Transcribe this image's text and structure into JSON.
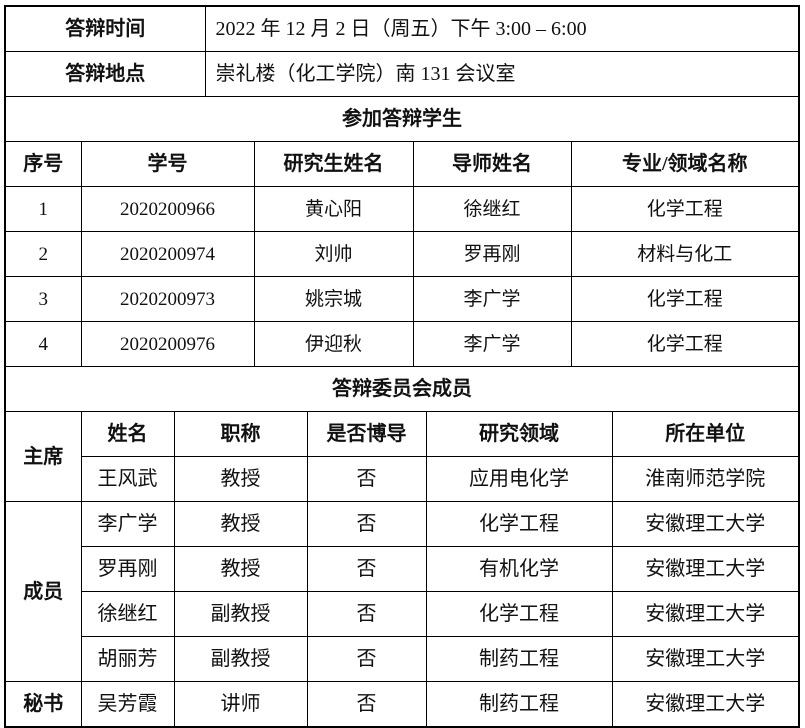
{
  "info": {
    "time_label": "答辩时间",
    "time_value": "2022 年 12 月 2 日（周五）下午 3:00 – 6:00",
    "place_label": "答辩地点",
    "place_value": "崇礼楼（化工学院）南 131 会议室"
  },
  "students": {
    "title": "参加答辩学生",
    "headers": [
      "序号",
      "学号",
      "研究生姓名",
      "导师姓名",
      "专业/领域名称"
    ],
    "rows": [
      [
        "1",
        "2020200966",
        "黄心阳",
        "徐继红",
        "化学工程"
      ],
      [
        "2",
        "2020200974",
        "刘帅",
        "罗再刚",
        "材料与化工"
      ],
      [
        "3",
        "2020200973",
        "姚宗城",
        "李广学",
        "化学工程"
      ],
      [
        "4",
        "2020200976",
        "伊迎秋",
        "李广学",
        "化学工程"
      ]
    ]
  },
  "committee": {
    "title": "答辩委员会成员",
    "headers": [
      "姓名",
      "职称",
      "是否博导",
      "研究领域",
      "所在单位"
    ],
    "roles": {
      "chair": "主席",
      "members": "成员",
      "secretary": "秘书"
    },
    "rows": [
      [
        "王风武",
        "教授",
        "否",
        "应用电化学",
        "淮南师范学院"
      ],
      [
        "李广学",
        "教授",
        "否",
        "化学工程",
        "安徽理工大学"
      ],
      [
        "罗再刚",
        "教授",
        "否",
        "有机化学",
        "安徽理工大学"
      ],
      [
        "徐继红",
        "副教授",
        "否",
        "化学工程",
        "安徽理工大学"
      ],
      [
        "胡丽芳",
        "副教授",
        "否",
        "制药工程",
        "安徽理工大学"
      ],
      [
        "吴芳霞",
        "讲师",
        "否",
        "制药工程",
        "安徽理工大学"
      ]
    ]
  }
}
